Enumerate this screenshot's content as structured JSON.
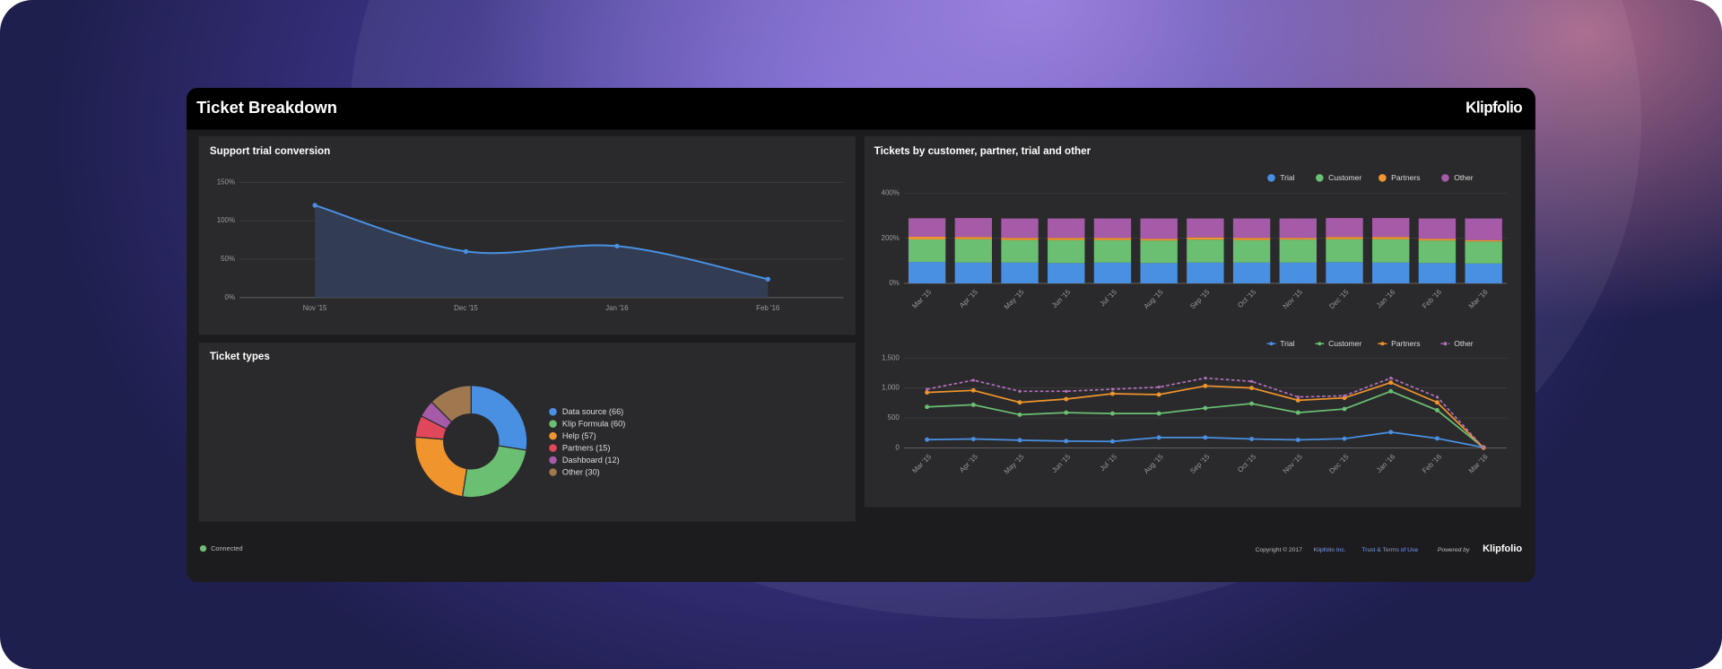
{
  "header": {
    "title": "Ticket Breakdown",
    "logo": "Klipfolio"
  },
  "footer": {
    "status": "Connected",
    "copyright": "Copyright © 2017",
    "company": "Klipfolio Inc.",
    "link": "Trust & Terms of Use",
    "powered_by": "Powered by",
    "logo": "Klipfolio"
  },
  "chart_data": [
    {
      "type": "area",
      "title": "Support trial conversion",
      "categories": [
        "Nov '15",
        "Dec '15",
        "Jan '16",
        "Feb '16"
      ],
      "values": [
        120,
        60,
        67,
        24
      ],
      "color": "#4a90e2",
      "ylim": [
        0,
        150
      ],
      "yticks": [
        {
          "value": 0,
          "label": "0%"
        },
        {
          "value": 50,
          "label": "50%"
        },
        {
          "value": 100,
          "label": "100%"
        },
        {
          "value": 150,
          "label": "150%"
        }
      ],
      "grid": true
    },
    {
      "type": "stacked_bar",
      "title": "Tickets by customer, partner, trial and other",
      "categories": [
        "Mar '15",
        "Apr '15",
        "May '15",
        "Jun '15",
        "Jul '15",
        "Aug '15",
        "Sep '15",
        "Oct '15",
        "Nov '15",
        "Dec '15",
        "Jan '16",
        "Feb '16",
        "Mar '16"
      ],
      "series": [
        {
          "name": "Trial",
          "color": "#4a90e2",
          "values": [
            95,
            92,
            92,
            90,
            92,
            90,
            92,
            92,
            92,
            94,
            92,
            90,
            88
          ]
        },
        {
          "name": "Customer",
          "color": "#6bbf73",
          "values": [
            100,
            104,
            100,
            102,
            100,
            100,
            102,
            100,
            102,
            102,
            104,
            100,
            98
          ]
        },
        {
          "name": "Partners",
          "color": "#f0952e",
          "values": [
            12,
            10,
            10,
            10,
            10,
            8,
            10,
            10,
            8,
            10,
            10,
            8,
            6
          ]
        },
        {
          "name": "Other",
          "color": "#a65ba8",
          "values": [
            82,
            84,
            86,
            86,
            86,
            90,
            84,
            86,
            86,
            84,
            84,
            90,
            96
          ]
        }
      ],
      "ylim": [
        0,
        400
      ],
      "yticks": [
        {
          "value": 0,
          "label": "0%"
        },
        {
          "value": 200,
          "label": "200%"
        },
        {
          "value": 400,
          "label": "400%"
        }
      ],
      "grid": true,
      "legend": "top-right"
    },
    {
      "type": "line",
      "categories": [
        "Mar '15",
        "Apr '15",
        "May '15",
        "Jun '15",
        "Jul '15",
        "Aug '15",
        "Sep '15",
        "Oct '15",
        "Nov '15",
        "Dec '15",
        "Jan '16",
        "Feb '16",
        "Mar '16"
      ],
      "series": [
        {
          "name": "Trial",
          "color": "#4a90e2",
          "values": [
            140,
            150,
            130,
            115,
            110,
            175,
            175,
            150,
            135,
            155,
            265,
            160,
            10
          ]
        },
        {
          "name": "Customer",
          "color": "#6bbf73",
          "values": [
            685,
            720,
            555,
            590,
            575,
            575,
            665,
            740,
            590,
            650,
            945,
            630,
            5
          ]
        },
        {
          "name": "Partners",
          "color": "#f0952e",
          "values": [
            925,
            960,
            760,
            815,
            905,
            890,
            1035,
            1000,
            795,
            835,
            1090,
            760,
            5
          ]
        },
        {
          "name": "Other",
          "color": "#b070b8",
          "dashed": true,
          "values": [
            980,
            1130,
            945,
            945,
            980,
            1015,
            1165,
            1110,
            850,
            870,
            1165,
            850,
            5
          ]
        }
      ],
      "ylim": [
        0,
        1500
      ],
      "yticks": [
        0,
        500,
        {
          "value": 1000,
          "label": "1,000"
        },
        {
          "value": 1500,
          "label": "1,500"
        }
      ],
      "grid": true,
      "legend": "top-right"
    },
    {
      "type": "donut",
      "title": "Ticket types",
      "labels": [
        "Data source (66)",
        "Klip Formula (60)",
        "Help (57)",
        "Partners (15)",
        "Dashboard (12)",
        "Other (30)"
      ],
      "values": [
        66,
        60,
        57,
        15,
        12,
        30
      ],
      "colors": [
        "#4a90e2",
        "#6bbf73",
        "#f0952e",
        "#e0475a",
        "#a65ba8",
        "#a07850"
      ],
      "legend": "right"
    }
  ]
}
